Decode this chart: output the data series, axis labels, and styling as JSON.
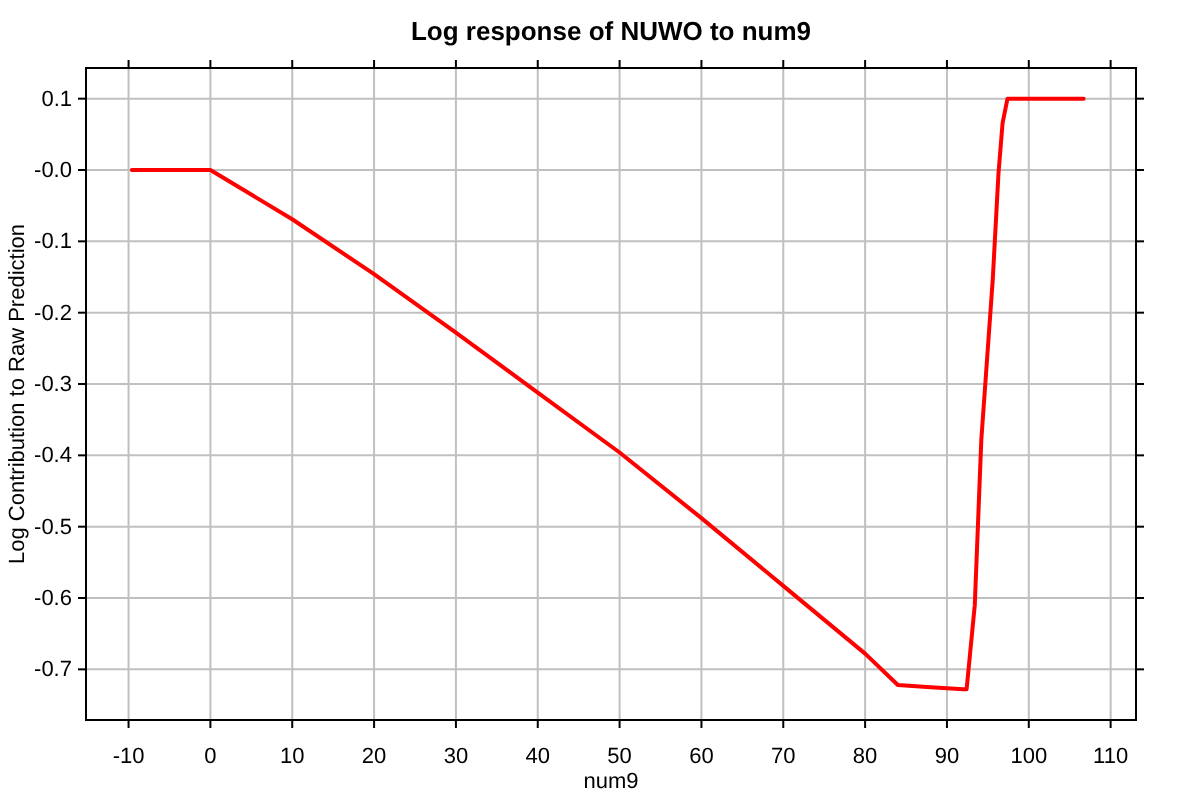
{
  "chart_data": {
    "type": "line",
    "title": "Log response of NUWO to num9",
    "xlabel": "num9",
    "ylabel": "Log Contribution to Raw Prediction",
    "x": [
      -9.6,
      0,
      10,
      20,
      30,
      40,
      50,
      60,
      70,
      80,
      84,
      88,
      92,
      92.4,
      93.4,
      94.2,
      95.6,
      96.3,
      96.8,
      97.4,
      106.7
    ],
    "series": [
      {
        "color": "#ff0000",
        "values": [
          0,
          0,
          -0.069,
          -0.146,
          -0.228,
          -0.312,
          -0.396,
          -0.488,
          -0.583,
          -0.678,
          -0.722,
          -0.725,
          -0.728,
          -0.728,
          -0.61,
          -0.378,
          -0.153,
          -0.004,
          0.066,
          0.1,
          0.1
        ]
      }
    ],
    "xlim": [
      -15.2,
      113.1
    ],
    "xticks": [
      -10,
      0,
      10,
      20,
      30,
      40,
      50,
      60,
      70,
      80,
      90,
      100,
      110
    ],
    "ylim": [
      -0.771,
      0.143
    ],
    "yticks": [
      {
        "value": 0.1,
        "label": "0.1"
      },
      {
        "value": 0,
        "label": "-0.0"
      },
      {
        "value": -0.1,
        "label": "-0.1"
      },
      {
        "value": -0.2,
        "label": "-0.2"
      },
      {
        "value": -0.3,
        "label": "-0.3"
      },
      {
        "value": -0.4,
        "label": "-0.4"
      },
      {
        "value": -0.5,
        "label": "-0.5"
      },
      {
        "value": -0.6,
        "label": "-0.6"
      },
      {
        "value": -0.7,
        "label": "-0.7"
      }
    ],
    "grid": true,
    "marker": "none",
    "line_style": "solid"
  }
}
